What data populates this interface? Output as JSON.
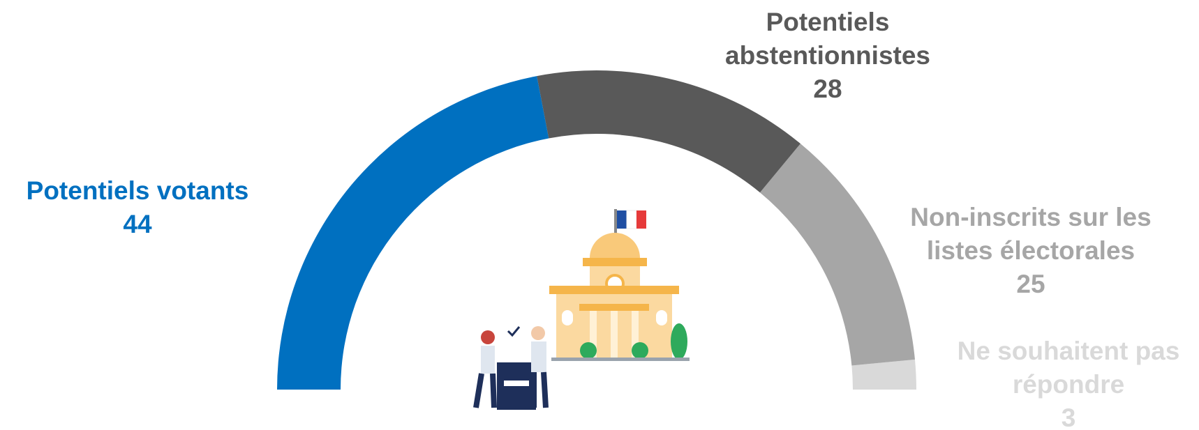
{
  "chart_data": {
    "type": "semi-donut",
    "categories": [
      "Potentiels votants",
      "Potentiels abstentionnistes",
      "Non-inscrits sur les listes électorales",
      "Ne souhaitent pas répondre"
    ],
    "values": [
      44,
      28,
      25,
      3
    ],
    "colors": [
      "#0070c0",
      "#595959",
      "#a6a6a6",
      "#d9d9d9"
    ]
  }
}
